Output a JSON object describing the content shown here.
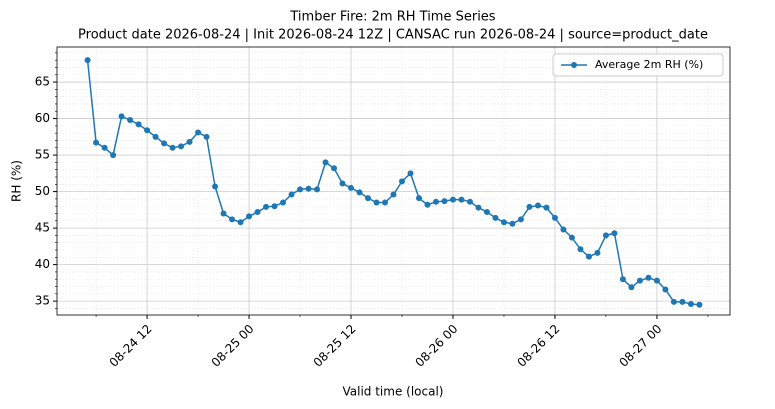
{
  "chart_data": {
    "type": "line",
    "title": "Timber Fire: 2m RH Time Series",
    "subtitle": "Product date 2026-08-24 | Init 2026-08-24 12Z | CANSAC run 2026-08-24 | source=product_date",
    "x_label": "Valid time (local)",
    "y_label": "RH (%)",
    "x": [
      "08-24 05",
      "08-24 06",
      "08-24 07",
      "08-24 08",
      "08-24 09",
      "08-24 10",
      "08-24 11",
      "08-24 12",
      "08-24 13",
      "08-24 14",
      "08-24 15",
      "08-24 16",
      "08-24 17",
      "08-24 18",
      "08-24 19",
      "08-24 20",
      "08-24 21",
      "08-24 22",
      "08-24 23",
      "08-25 00",
      "08-25 01",
      "08-25 02",
      "08-25 03",
      "08-25 04",
      "08-25 05",
      "08-25 06",
      "08-25 07",
      "08-25 08",
      "08-25 09",
      "08-25 10",
      "08-25 11",
      "08-25 12",
      "08-25 13",
      "08-25 14",
      "08-25 15",
      "08-25 16",
      "08-25 17",
      "08-25 18",
      "08-25 19",
      "08-25 20",
      "08-25 21",
      "08-25 22",
      "08-25 23",
      "08-26 00",
      "08-26 01",
      "08-26 02",
      "08-26 03",
      "08-26 04",
      "08-26 05",
      "08-26 06",
      "08-26 07",
      "08-26 08",
      "08-26 09",
      "08-26 10",
      "08-26 11",
      "08-26 12",
      "08-26 13",
      "08-26 14",
      "08-26 15",
      "08-26 16",
      "08-26 17",
      "08-26 18",
      "08-26 19",
      "08-26 20",
      "08-26 21",
      "08-26 22",
      "08-26 23",
      "08-27 00",
      "08-27 01",
      "08-27 02",
      "08-27 03",
      "08-27 04",
      "08-27 05"
    ],
    "series": [
      {
        "name": "Average 2m RH (%)",
        "color": "#1f77b4",
        "values": [
          68,
          56.7,
          56.0,
          55.0,
          60.3,
          59.8,
          59.2,
          58.4,
          57.5,
          56.6,
          56.0,
          56.2,
          56.8,
          58.1,
          57.5,
          50.7,
          47.0,
          46.2,
          45.8,
          46.6,
          47.2,
          47.9,
          48.0,
          48.5,
          49.6,
          50.3,
          50.4,
          50.3,
          54.0,
          53.2,
          51.1,
          50.5,
          49.9,
          49.1,
          48.5,
          48.5,
          49.6,
          51.4,
          52.5,
          49.1,
          48.2,
          48.6,
          48.7,
          48.9,
          48.9,
          48.6,
          47.8,
          47.2,
          46.4,
          45.8,
          45.6,
          46.2,
          47.9,
          48.1,
          47.8,
          46.4,
          44.8,
          43.7,
          42.1,
          41.1,
          41.6,
          44.0,
          44.3,
          38.0,
          36.9,
          37.8,
          38.2,
          37.8,
          36.6,
          34.9,
          34.9,
          34.6,
          34.5
        ]
      }
    ],
    "xlim": [
      "08-24 01:24",
      "08-27 08:36"
    ],
    "xticks": [
      "08-24 12",
      "08-25 00",
      "08-25 12",
      "08-26 00",
      "08-26 12",
      "08-27 00"
    ],
    "xminorticks": [
      "08-24 06",
      "08-24 18",
      "08-25 06",
      "08-25 18",
      "08-26 06",
      "08-26 18",
      "08-27 06"
    ],
    "ylim": [
      33.1,
      69.8
    ],
    "yticks": [
      35,
      40,
      45,
      50,
      55,
      60,
      65
    ],
    "yminorticks": [
      34,
      36,
      37,
      38,
      39,
      41,
      42,
      43,
      44,
      46,
      47,
      48,
      49,
      51,
      52,
      53,
      54,
      56,
      57,
      58,
      59,
      61,
      62,
      63,
      64,
      66,
      67,
      68,
      69
    ],
    "grid": true,
    "legend": "upper right"
  }
}
